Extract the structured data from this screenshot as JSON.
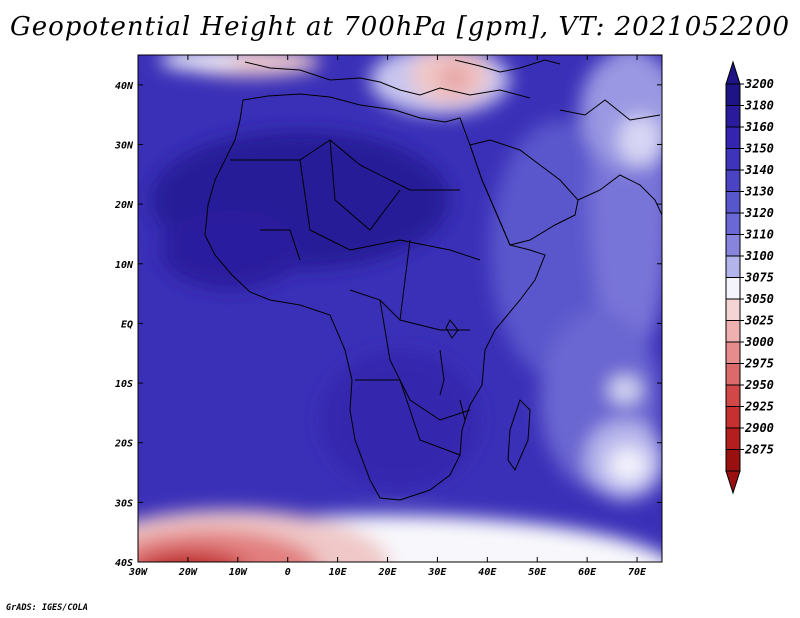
{
  "title": "Geopotential Height at 700hPa [gpm], VT: 2021052200",
  "footer": "GrADS: IGES/COLA",
  "map": {
    "lon_range": [
      -30,
      75
    ],
    "lat_range": [
      -40,
      45
    ],
    "lon_ticks": [
      "30W",
      "20W",
      "10W",
      "0",
      "10E",
      "20E",
      "30E",
      "40E",
      "50E",
      "60E",
      "70E"
    ],
    "lat_ticks": [
      "40N",
      "30N",
      "20N",
      "10N",
      "EQ",
      "10S",
      "20S",
      "30S",
      "40S"
    ]
  },
  "colorbar": {
    "levels": [
      "3200",
      "3180",
      "3160",
      "3150",
      "3140",
      "3130",
      "3120",
      "3110",
      "3100",
      "3075",
      "3050",
      "3025",
      "3000",
      "2975",
      "2950",
      "2925",
      "2900",
      "2875"
    ],
    "colors": [
      "#1e1486",
      "#2a1a9c",
      "#3424b0",
      "#3e34bc",
      "#4a44c4",
      "#5856cc",
      "#6a68d4",
      "#8684dc",
      "#b4b4ec",
      "#f4f4fc",
      "#f4d4d4",
      "#eeb0b0",
      "#e68c8c",
      "#dc6a6a",
      "#d24848",
      "#c63030",
      "#b41e1e",
      "#9a1010"
    ],
    "max_arrow_color": "#1e1486",
    "min_arrow_color": "#9a1010"
  }
}
